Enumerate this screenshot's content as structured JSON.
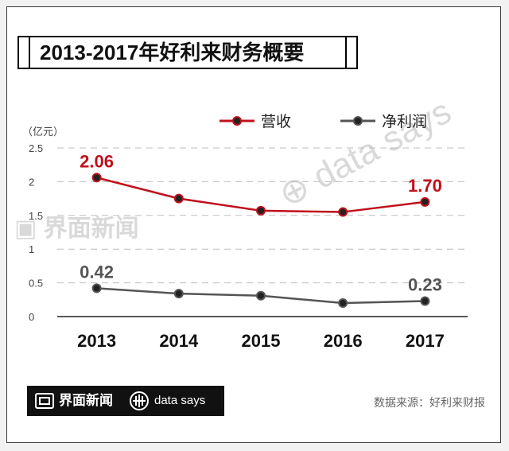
{
  "title": "2013-2017年好利来财务概要",
  "unit_label": "（亿元）",
  "footer": {
    "brand": "界面新闻",
    "brand2": "data says",
    "source": "数据来源：好利来财报"
  },
  "colors": {
    "revenue": "#c0101c",
    "profit": "#555555",
    "grid": "#bdbdbd"
  },
  "chart_data": {
    "type": "line",
    "categories": [
      "2013",
      "2014",
      "2015",
      "2016",
      "2017"
    ],
    "ylim": [
      0,
      2.5
    ],
    "yticks": [
      "0",
      "0.5",
      "1",
      "1.5",
      "2",
      "2.5"
    ],
    "legend_position": "top-right",
    "grid": true,
    "series": [
      {
        "name": "营收",
        "values": [
          2.06,
          1.75,
          1.57,
          1.55,
          1.7
        ],
        "labels": [
          "2.06",
          "",
          "",
          "",
          "1.70"
        ]
      },
      {
        "name": "净利润",
        "values": [
          0.42,
          0.34,
          0.31,
          0.2,
          0.23
        ],
        "labels": [
          "0.42",
          "",
          "",
          "",
          "0.23"
        ]
      }
    ]
  }
}
